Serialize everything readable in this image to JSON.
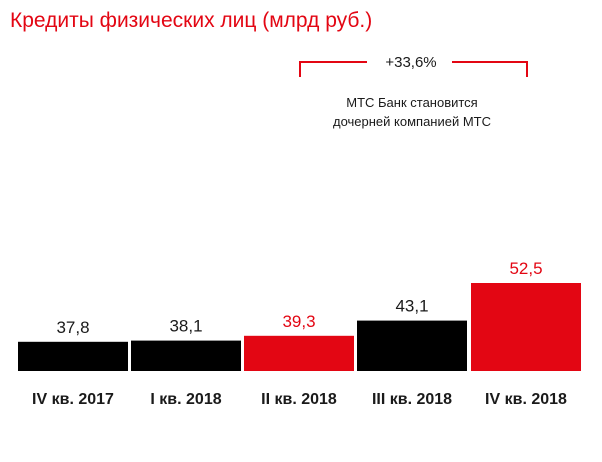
{
  "colors": {
    "title": "#e30613",
    "accent": "#e30613",
    "dark": "#000000",
    "text": "#1a1a1a"
  },
  "chart_data": {
    "type": "bar",
    "title": "Кредиты физических лиц (млрд руб.)",
    "categories": [
      "IV кв. 2017",
      "I кв. 2018",
      "II кв. 2018",
      "III кв. 2018",
      "IV кв. 2018"
    ],
    "values": [
      37.8,
      38.1,
      39.3,
      43.1,
      52.5
    ],
    "value_labels": [
      "37,8",
      "38,1",
      "39,3",
      "43,1",
      "52,5"
    ],
    "bar_colors": [
      "#000000",
      "#000000",
      "#e30613",
      "#000000",
      "#e30613"
    ],
    "value_label_colors": [
      "#1a1a1a",
      "#1a1a1a",
      "#e30613",
      "#1a1a1a",
      "#e30613"
    ],
    "annotations": {
      "growth": "+33,6%",
      "note_line1": "МТС Банк становится",
      "note_line2": "дочерней компанией МТС"
    },
    "grid": false,
    "legend": "none"
  }
}
